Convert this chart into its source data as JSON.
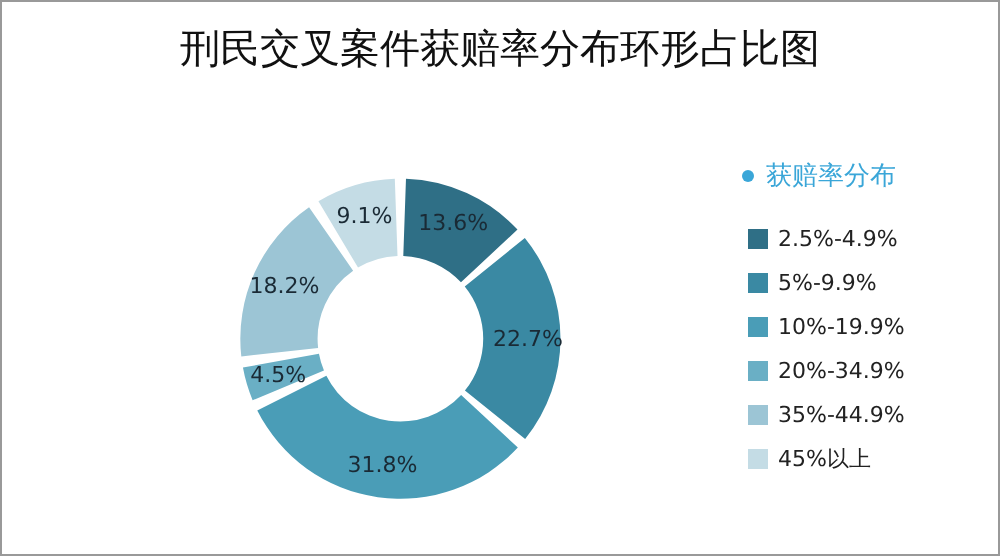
{
  "chart_data": {
    "type": "donut",
    "title": "刑民交叉案件获赔率分布环形占比图",
    "legend_title": "获赔率分布",
    "legend": "right",
    "categories": [
      "2.5%-4.9%",
      "5%-9.9%",
      "10%-19.9%",
      "20%-34.9%",
      "35%-44.9%",
      "45%以上"
    ],
    "values": [
      13.6,
      22.7,
      31.8,
      4.5,
      18.2,
      9.1
    ],
    "value_labels": [
      "13.6%",
      "22.7%",
      "31.8%",
      "4.5%",
      "18.2%",
      "9.1%"
    ],
    "colors": [
      "#2f6f86",
      "#3a89a3",
      "#4a9db7",
      "#6aafc5",
      "#9cc5d5",
      "#c4dce5"
    ]
  }
}
